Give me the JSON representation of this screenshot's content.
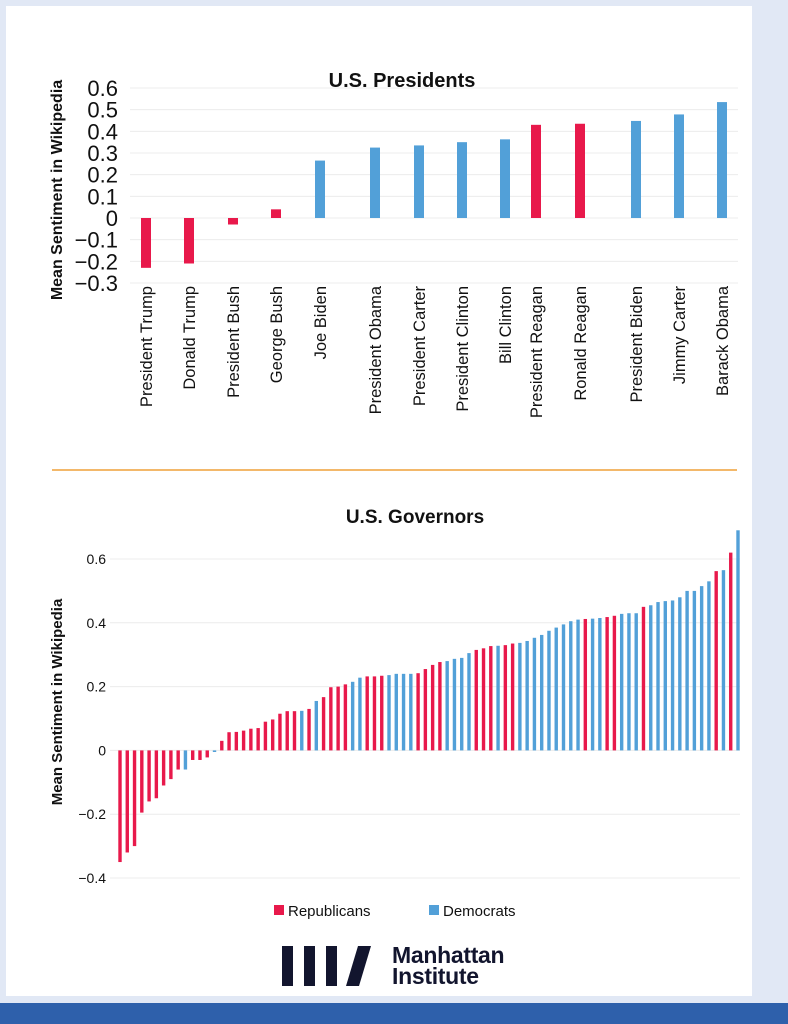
{
  "colors": {
    "republican": "#e8194b",
    "democrat": "#52a0d8",
    "divider": "#f3b86a",
    "footer_band": "#2e60ab",
    "background": "#e1e8f5",
    "logo": "#12152e"
  },
  "chart_data": [
    {
      "type": "bar",
      "title": "U.S. Presidents",
      "xlabel": "",
      "ylabel": "Mean Sentiment in Wikipedia",
      "ylim": [
        -0.3,
        0.6
      ],
      "yticks": [
        "0.6",
        "0.5",
        "0.4",
        "0.3",
        "0.2",
        "0.1",
        "0",
        "−0.1",
        "−0.2",
        "−0.3"
      ],
      "ytick_values": [
        0.6,
        0.5,
        0.4,
        0.3,
        0.2,
        0.1,
        0,
        -0.1,
        -0.2,
        -0.3
      ],
      "grid": true,
      "categories": [
        "President Trump",
        "Donald Trump",
        "President Bush",
        "George Bush",
        "Joe Biden",
        "President Obama",
        "President Carter",
        "President Clinton",
        "Bill Clinton",
        "President Reagan",
        "Ronald Reagan",
        "President Biden",
        "Jimmy Carter",
        "Barack Obama"
      ],
      "values": [
        -0.23,
        -0.21,
        -0.03,
        0.04,
        0.265,
        0.325,
        0.335,
        0.35,
        0.363,
        0.43,
        0.435,
        0.448,
        0.478,
        0.535
      ],
      "party": [
        "R",
        "R",
        "R",
        "R",
        "D",
        "D",
        "D",
        "D",
        "D",
        "R",
        "R",
        "D",
        "D",
        "D"
      ]
    },
    {
      "type": "bar",
      "title": "U.S. Governors",
      "xlabel": "",
      "ylabel": "Mean Sentiment in Wikipedia",
      "ylim": [
        -0.4,
        0.7
      ],
      "yticks": [
        "0.6",
        "0.4",
        "0.2",
        "0",
        "−0.2",
        "−0.4"
      ],
      "ytick_values": [
        0.6,
        0.4,
        0.2,
        0,
        -0.2,
        -0.4
      ],
      "grid": true,
      "legend": {
        "position": "bottom",
        "entries": [
          {
            "label": "Republicans",
            "party": "R"
          },
          {
            "label": "Democrats",
            "party": "D"
          }
        ]
      },
      "values": [
        -0.35,
        -0.32,
        -0.3,
        -0.195,
        -0.16,
        -0.15,
        -0.11,
        -0.09,
        -0.06,
        -0.06,
        -0.03,
        -0.03,
        -0.022,
        -0.005,
        0.03,
        0.057,
        0.058,
        0.062,
        0.068,
        0.07,
        0.09,
        0.097,
        0.115,
        0.123,
        0.123,
        0.124,
        0.13,
        0.155,
        0.167,
        0.198,
        0.2,
        0.207,
        0.215,
        0.228,
        0.232,
        0.232,
        0.234,
        0.236,
        0.24,
        0.24,
        0.24,
        0.242,
        0.255,
        0.268,
        0.277,
        0.28,
        0.287,
        0.29,
        0.305,
        0.315,
        0.32,
        0.327,
        0.328,
        0.33,
        0.335,
        0.337,
        0.343,
        0.353,
        0.362,
        0.375,
        0.385,
        0.395,
        0.405,
        0.41,
        0.412,
        0.413,
        0.415,
        0.418,
        0.422,
        0.428,
        0.43,
        0.43,
        0.45,
        0.455,
        0.465,
        0.468,
        0.47,
        0.48,
        0.5,
        0.5,
        0.515,
        0.53,
        0.562,
        0.565,
        0.62,
        0.69
      ],
      "party": [
        "R",
        "R",
        "R",
        "R",
        "R",
        "R",
        "R",
        "R",
        "R",
        "D",
        "R",
        "R",
        "R",
        "D",
        "R",
        "R",
        "R",
        "R",
        "R",
        "R",
        "R",
        "R",
        "R",
        "R",
        "R",
        "D",
        "R",
        "D",
        "R",
        "R",
        "R",
        "R",
        "D",
        "D",
        "R",
        "R",
        "R",
        "D",
        "D",
        "D",
        "D",
        "R",
        "R",
        "R",
        "R",
        "D",
        "D",
        "D",
        "D",
        "R",
        "R",
        "R",
        "D",
        "R",
        "R",
        "D",
        "D",
        "D",
        "D",
        "D",
        "D",
        "D",
        "D",
        "D",
        "R",
        "D",
        "D",
        "R",
        "R",
        "D",
        "D",
        "D",
        "R",
        "D",
        "D",
        "D",
        "D",
        "D",
        "D",
        "D",
        "D",
        "D",
        "R",
        "D",
        "R",
        "D"
      ]
    }
  ],
  "logo": {
    "line1": "Manhattan",
    "line2": "Institute"
  }
}
